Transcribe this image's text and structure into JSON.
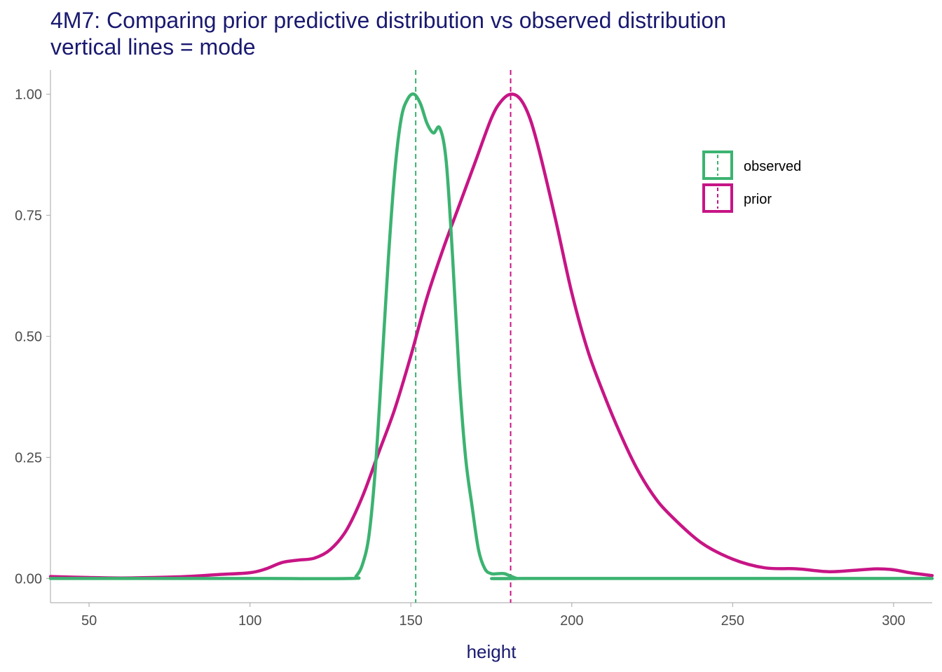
{
  "chart_data": {
    "type": "line",
    "title": "4M7: Comparing prior predictive distribution vs observed distribution",
    "subtitle": "vertical lines = mode",
    "xlabel": "height",
    "ylabel": "",
    "xlim": [
      38,
      312
    ],
    "ylim": [
      -0.05,
      1.05
    ],
    "x_ticks": [
      50,
      100,
      150,
      200,
      250,
      300
    ],
    "y_ticks": [
      0.0,
      0.25,
      0.5,
      0.75,
      1.0
    ],
    "x_tick_labels": [
      "50",
      "100",
      "150",
      "200",
      "250",
      "300"
    ],
    "y_tick_labels": [
      "0.00",
      "0.25",
      "0.50",
      "0.75",
      "1.00"
    ],
    "grid": false,
    "legend_position": "top-right",
    "series": [
      {
        "name": "observed",
        "color": "#3CB371",
        "mode": 151.5,
        "x": [
          38,
          100,
          131,
          133,
          135,
          137,
          139,
          141,
          143,
          145,
          147,
          149,
          151,
          153,
          155,
          157,
          159,
          161,
          163,
          165,
          167,
          169,
          171,
          173,
          175,
          177,
          179,
          181,
          183,
          185,
          312
        ],
        "y": [
          0,
          0,
          0,
          0.005,
          0.03,
          0.09,
          0.23,
          0.44,
          0.66,
          0.84,
          0.95,
          0.99,
          1.0,
          0.98,
          0.94,
          0.92,
          0.93,
          0.86,
          0.66,
          0.42,
          0.25,
          0.15,
          0.06,
          0.02,
          0.01,
          0.01,
          0.01,
          0.005,
          0,
          0,
          0
        ]
      },
      {
        "name": "prior",
        "color": "#C71585",
        "mode": 181,
        "x": [
          38,
          50,
          60,
          70,
          80,
          90,
          100,
          105,
          110,
          115,
          120,
          125,
          130,
          135,
          140,
          145,
          150,
          155,
          160,
          165,
          170,
          175,
          178,
          181,
          184,
          187,
          190,
          195,
          200,
          205,
          210,
          215,
          220,
          225,
          230,
          240,
          250,
          260,
          270,
          280,
          290,
          295,
          300,
          305,
          312
        ],
        "y": [
          0.004,
          0.002,
          0.001,
          0.002,
          0.004,
          0.008,
          0.012,
          0.02,
          0.033,
          0.038,
          0.042,
          0.06,
          0.1,
          0.17,
          0.26,
          0.35,
          0.46,
          0.58,
          0.68,
          0.77,
          0.86,
          0.95,
          0.985,
          1.0,
          0.99,
          0.95,
          0.88,
          0.74,
          0.59,
          0.47,
          0.38,
          0.3,
          0.23,
          0.175,
          0.135,
          0.075,
          0.04,
          0.022,
          0.02,
          0.014,
          0.018,
          0.02,
          0.018,
          0.012,
          0.006
        ]
      }
    ]
  }
}
